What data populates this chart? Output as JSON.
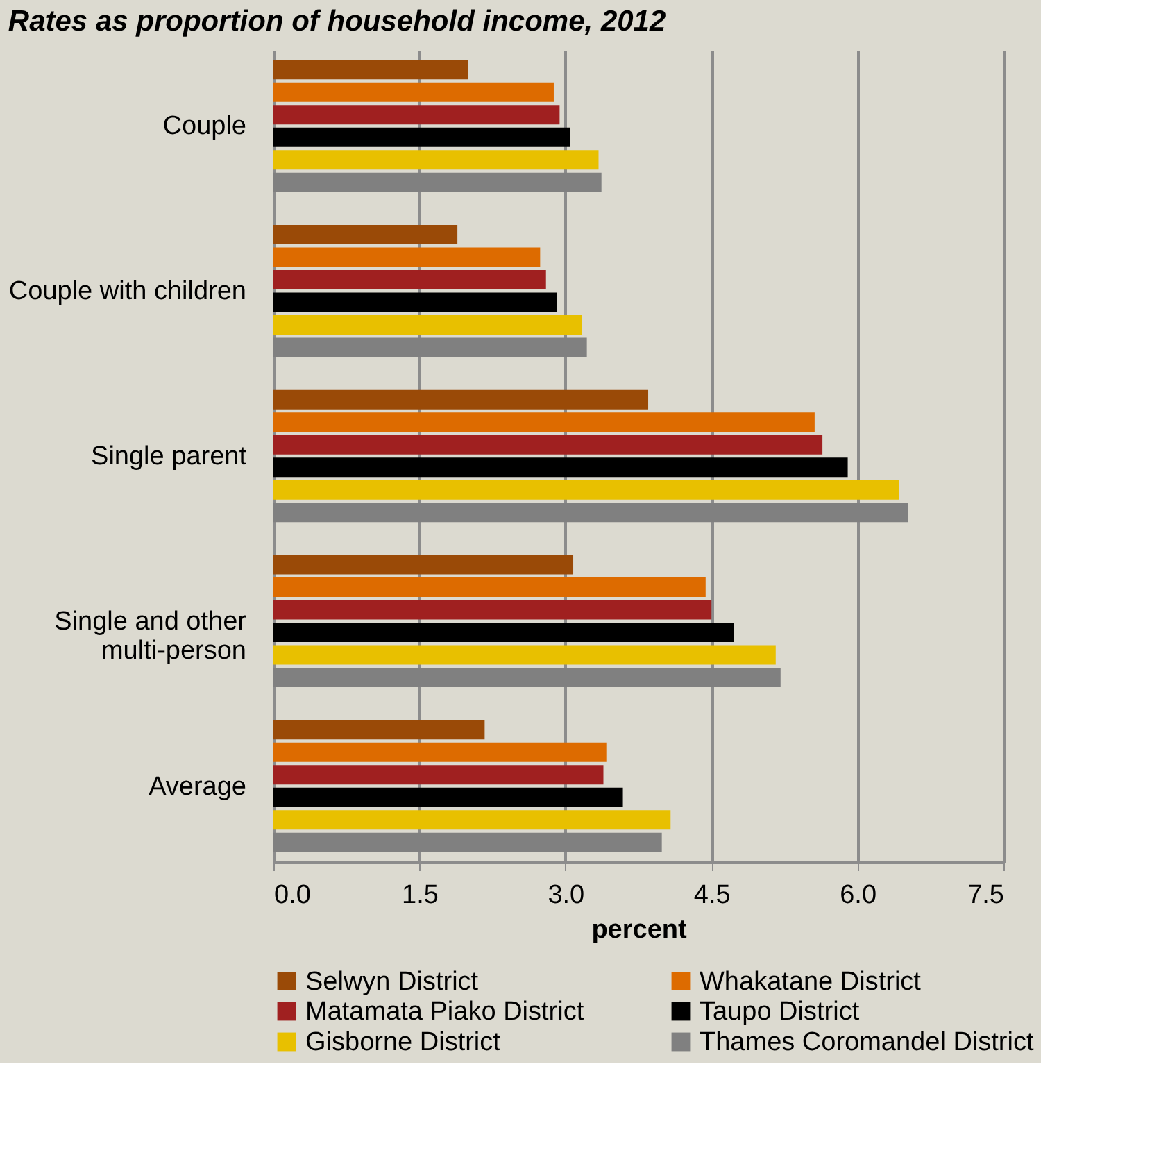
{
  "chart_data": {
    "type": "bar",
    "orientation": "horizontal",
    "title": "Rates as proportion of household income, 2012",
    "xlabel": "percent",
    "categories": [
      "Couple",
      "Couple with children",
      "Single parent",
      "Single and other\nmulti-person",
      "Average"
    ],
    "series": [
      {
        "name": "Selwyn District",
        "color": "#9a4a07",
        "values": [
          2.0,
          1.89,
          3.85,
          3.08,
          2.17
        ]
      },
      {
        "name": "Whakatane District",
        "color": "#dd6b00",
        "values": [
          2.88,
          2.74,
          5.56,
          4.44,
          3.42
        ]
      },
      {
        "name": "Matamata Piako District",
        "color": "#a02020",
        "values": [
          2.94,
          2.8,
          5.64,
          4.5,
          3.39
        ]
      },
      {
        "name": "Taupo District",
        "color": "#000000",
        "values": [
          3.05,
          2.91,
          5.9,
          4.73,
          3.59
        ]
      },
      {
        "name": "Gisborne District",
        "color": "#e8c000",
        "values": [
          3.34,
          3.17,
          6.43,
          5.16,
          4.08
        ]
      },
      {
        "name": "Thames Coromandel District",
        "color": "#808080",
        "values": [
          3.37,
          3.22,
          6.52,
          5.21,
          3.99
        ]
      }
    ],
    "xlim": [
      0,
      7.5
    ],
    "xticks": [
      {
        "value": 0,
        "label": "0.0"
      },
      {
        "value": 1.5,
        "label": "1.5"
      },
      {
        "value": 3,
        "label": "3.0"
      },
      {
        "value": 4.5,
        "label": "4.5"
      },
      {
        "value": 6,
        "label": "6.0"
      },
      {
        "value": 7.5,
        "label": "7.5"
      }
    ],
    "grid": "x",
    "legend": "bottom"
  }
}
